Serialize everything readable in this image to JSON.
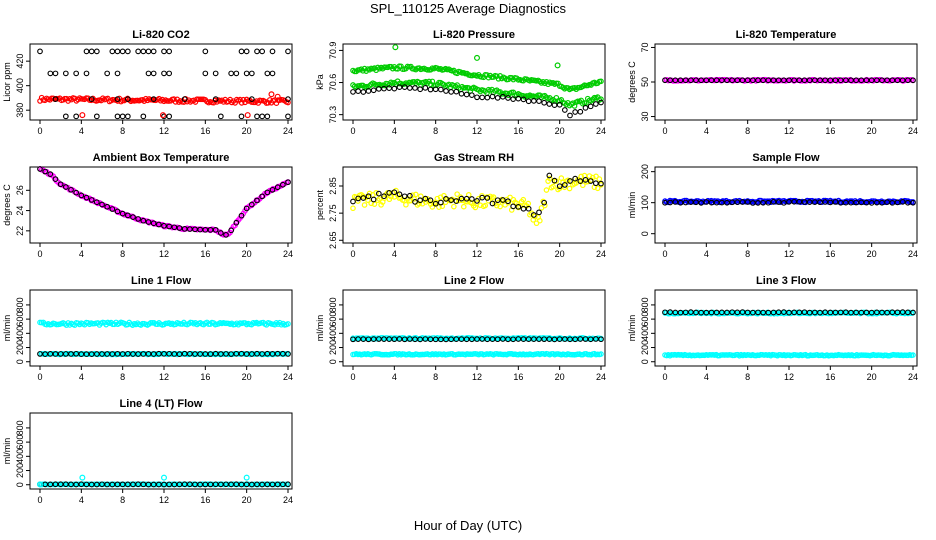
{
  "title": "SPL_110125  Average Diagnostics",
  "x_axis_title": "Hour of Day (UTC)",
  "colors": {
    "black": "#000000",
    "red": "#ff0000",
    "green": "#00cc00",
    "magenta": "#ff00ff",
    "yellow": "#ffff00",
    "blue": "#0000ff",
    "cyan": "#00ffff"
  },
  "chart_data": [
    {
      "type": "scatter",
      "title": "Li-820 CO2",
      "ylabel": "Licor ppm",
      "xlim": [
        0,
        24
      ],
      "ylim": [
        372,
        434
      ],
      "xticks": [
        0,
        4,
        8,
        12,
        16,
        20,
        24
      ],
      "yticks": [
        380,
        400,
        420
      ],
      "series": [
        {
          "color": "red",
          "kind": "band",
          "x": [
            0,
            24
          ],
          "y": [
            389,
            387
          ],
          "spread": 1.5
        },
        {
          "color": "black",
          "kind": "levels",
          "x": [
            0,
            24
          ],
          "levels": [
            375,
            389,
            410,
            428
          ],
          "density": 0.35
        },
        {
          "color": "red",
          "kind": "points",
          "x": [
            4.1,
            11.9,
            20.1,
            22.4,
            23.0
          ],
          "y": [
            376,
            376,
            376,
            393,
            391
          ]
        }
      ]
    },
    {
      "type": "scatter",
      "title": "Li-820 Pressure",
      "ylabel": "kPa",
      "xlim": [
        0,
        24
      ],
      "ylim": [
        70.25,
        70.96
      ],
      "xticks": [
        0,
        4,
        8,
        12,
        16,
        20,
        24
      ],
      "yticks": [
        70.3,
        70.6,
        70.9
      ],
      "series": [
        {
          "color": "green",
          "kind": "band",
          "x": [
            0,
            4,
            8,
            12,
            16,
            20,
            21,
            24
          ],
          "y": [
            70.71,
            70.74,
            70.73,
            70.67,
            70.63,
            70.58,
            70.53,
            70.61
          ],
          "spread": 0.015
        },
        {
          "color": "green",
          "kind": "band",
          "x": [
            0,
            4,
            8,
            12,
            16,
            20,
            21,
            24
          ],
          "y": [
            70.56,
            70.6,
            70.59,
            70.53,
            70.49,
            70.44,
            70.39,
            70.46
          ],
          "spread": 0.02
        },
        {
          "color": "black",
          "kind": "line",
          "x": [
            0,
            4,
            8,
            12,
            16,
            20,
            21,
            24
          ],
          "y": [
            70.51,
            70.55,
            70.54,
            70.47,
            70.45,
            70.39,
            70.3,
            70.41
          ],
          "spread": 0.01
        },
        {
          "color": "green",
          "kind": "points",
          "x": [
            4.1,
            12.0,
            19.8
          ],
          "y": [
            70.93,
            70.83,
            70.76
          ]
        }
      ]
    },
    {
      "type": "scatter",
      "title": "Li-820 Temperature",
      "ylabel": "degrees C",
      "xlim": [
        0,
        24
      ],
      "ylim": [
        28,
        72
      ],
      "xticks": [
        0,
        4,
        8,
        12,
        16,
        20,
        24
      ],
      "yticks": [
        30,
        50,
        70
      ],
      "series": [
        {
          "color": "magenta",
          "kind": "band",
          "x": [
            0,
            24
          ],
          "y": [
            51,
            51
          ],
          "spread": 0.4
        },
        {
          "color": "black",
          "kind": "line",
          "x": [
            0,
            24
          ],
          "y": [
            51,
            51
          ],
          "spread": 0
        }
      ]
    },
    {
      "type": "scatter",
      "title": "Ambient Box Temperature",
      "ylabel": "degrees C",
      "xlim": [
        0,
        24
      ],
      "ylim": [
        20.8,
        28.3
      ],
      "xticks": [
        0,
        4,
        8,
        12,
        16,
        20,
        24
      ],
      "yticks": [
        22,
        24,
        26
      ],
      "series": [
        {
          "color": "magenta",
          "kind": "band",
          "x": [
            0,
            1,
            2,
            4,
            6,
            8,
            10,
            12,
            14,
            16,
            17,
            17.8,
            18.2,
            19,
            20,
            22,
            24
          ],
          "y": [
            28.1,
            27.6,
            26.6,
            25.5,
            24.6,
            23.7,
            23.0,
            22.5,
            22.2,
            22.1,
            22.1,
            21.6,
            21.6,
            22.8,
            24.2,
            25.8,
            26.8
          ],
          "spread": 0.08
        },
        {
          "color": "black",
          "kind": "line",
          "x": [
            0,
            1,
            2,
            4,
            6,
            8,
            10,
            12,
            14,
            16,
            17,
            17.8,
            18.2,
            19,
            20,
            22,
            24
          ],
          "y": [
            28.1,
            27.6,
            26.6,
            25.5,
            24.6,
            23.7,
            23.0,
            22.5,
            22.2,
            22.1,
            22.1,
            21.6,
            21.6,
            22.8,
            24.2,
            25.8,
            26.8
          ],
          "spread": 0
        }
      ]
    },
    {
      "type": "scatter",
      "title": "Gas Stream RH",
      "ylabel": "percent",
      "xlim": [
        0,
        24
      ],
      "ylim": [
        2.64,
        2.92
      ],
      "xticks": [
        0,
        4,
        8,
        12,
        16,
        20,
        24
      ],
      "yticks": [
        2.65,
        2.75,
        2.85
      ],
      "series": [
        {
          "color": "yellow",
          "kind": "band",
          "x": [
            0,
            2,
            4,
            6,
            8,
            10,
            12,
            14,
            16,
            17,
            17.8,
            18.5,
            19,
            20,
            22,
            24
          ],
          "y": [
            2.79,
            2.8,
            2.81,
            2.8,
            2.79,
            2.8,
            2.79,
            2.79,
            2.78,
            2.77,
            2.7,
            2.79,
            2.87,
            2.86,
            2.87,
            2.86
          ],
          "spread": 0.025
        },
        {
          "color": "black",
          "kind": "line",
          "x": [
            0,
            2,
            4,
            6,
            8,
            10,
            12,
            14,
            16,
            17,
            17.8,
            18.5,
            19,
            20,
            22,
            24
          ],
          "y": [
            2.8,
            2.81,
            2.82,
            2.8,
            2.79,
            2.8,
            2.8,
            2.79,
            2.78,
            2.77,
            2.72,
            2.8,
            2.88,
            2.86,
            2.88,
            2.86
          ],
          "spread": 0.012
        }
      ]
    },
    {
      "type": "scatter",
      "title": "Sample Flow",
      "ylabel": "ml/min",
      "xlim": [
        0,
        24
      ],
      "ylim": [
        -30,
        215
      ],
      "xticks": [
        0,
        4,
        8,
        12,
        16,
        20,
        24
      ],
      "yticks": [
        0,
        100,
        200
      ],
      "series": [
        {
          "color": "blue",
          "kind": "band",
          "x": [
            0,
            24
          ],
          "y": [
            104,
            104
          ],
          "spread": 3
        },
        {
          "color": "black",
          "kind": "line",
          "x": [
            0,
            24
          ],
          "y": [
            101,
            101
          ],
          "spread": 2
        }
      ]
    },
    {
      "type": "scatter",
      "title": "Line 1 Flow",
      "ylabel": "ml/min",
      "xlim": [
        0,
        24
      ],
      "ylim": [
        -60,
        1010
      ],
      "xticks": [
        0,
        4,
        8,
        12,
        16,
        20,
        24
      ],
      "yticks": [
        0,
        200,
        400,
        600,
        800
      ],
      "series": [
        {
          "color": "cyan",
          "kind": "band",
          "x": [
            0,
            24
          ],
          "y": [
            535,
            535
          ],
          "spread": 20
        },
        {
          "color": "cyan",
          "kind": "band",
          "x": [
            0,
            24
          ],
          "y": [
            108,
            108
          ],
          "spread": 6
        },
        {
          "color": "black",
          "kind": "line",
          "x": [
            0,
            24
          ],
          "y": [
            110,
            110
          ],
          "spread": 3
        }
      ]
    },
    {
      "type": "scatter",
      "title": "Line 2 Flow",
      "ylabel": "ml/min",
      "xlim": [
        0,
        24
      ],
      "ylim": [
        -60,
        1010
      ],
      "xticks": [
        0,
        4,
        8,
        12,
        16,
        20,
        24
      ],
      "yticks": [
        0,
        200,
        400,
        600,
        800
      ],
      "series": [
        {
          "color": "cyan",
          "kind": "band",
          "x": [
            0,
            24
          ],
          "y": [
            330,
            330
          ],
          "spread": 8
        },
        {
          "color": "cyan",
          "kind": "band",
          "x": [
            0,
            24
          ],
          "y": [
            105,
            105
          ],
          "spread": 8
        },
        {
          "color": "black",
          "kind": "line",
          "x": [
            0,
            24
          ],
          "y": [
            318,
            318
          ],
          "spread": 3
        }
      ]
    },
    {
      "type": "scatter",
      "title": "Line 3 Flow",
      "ylabel": "ml/min",
      "xlim": [
        0,
        24
      ],
      "ylim": [
        -60,
        1010
      ],
      "xticks": [
        0,
        4,
        8,
        12,
        16,
        20,
        24
      ],
      "yticks": [
        0,
        200,
        400,
        600,
        800
      ],
      "series": [
        {
          "color": "cyan",
          "kind": "band",
          "x": [
            0,
            24
          ],
          "y": [
            685,
            685
          ],
          "spread": 10
        },
        {
          "color": "cyan",
          "kind": "band",
          "x": [
            0,
            24
          ],
          "y": [
            92,
            92
          ],
          "spread": 8
        },
        {
          "color": "black",
          "kind": "line",
          "x": [
            0,
            24
          ],
          "y": [
            695,
            695
          ],
          "spread": 4
        }
      ]
    },
    {
      "type": "scatter",
      "title": "Line 4 (LT) Flow",
      "ylabel": "ml/min",
      "xlim": [
        0,
        24
      ],
      "ylim": [
        -60,
        1010
      ],
      "xticks": [
        0,
        4,
        8,
        12,
        16,
        20,
        24
      ],
      "yticks": [
        0,
        200,
        400,
        600,
        800
      ],
      "series": [
        {
          "color": "cyan",
          "kind": "band",
          "x": [
            0,
            24
          ],
          "y": [
            5,
            5
          ],
          "spread": 3
        },
        {
          "color": "black",
          "kind": "line",
          "x": [
            0,
            24
          ],
          "y": [
            5,
            5
          ],
          "spread": 2
        },
        {
          "color": "cyan",
          "kind": "points",
          "x": [
            0,
            4.1,
            12.0,
            20.0
          ],
          "y": [
            5,
            100,
            100,
            100
          ]
        }
      ]
    }
  ]
}
